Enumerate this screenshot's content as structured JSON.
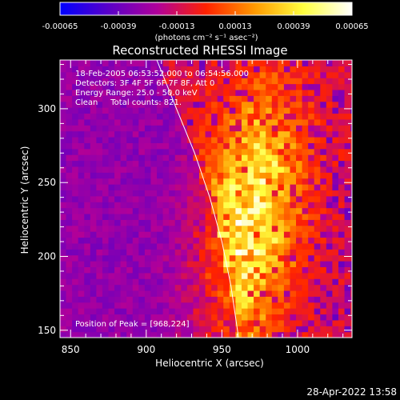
{
  "colorbar": {
    "tick_labels": [
      "-0.00065",
      "-0.00039",
      "-0.00013",
      "0.00013",
      "0.00039",
      "0.00065"
    ],
    "unit_label": "(photons cm⁻² s⁻¹ asec⁻²)",
    "colors": [
      "#0000ff",
      "#5a00c8",
      "#b0009a",
      "#ff2200",
      "#ff9a00",
      "#ffff40",
      "#ffffff"
    ]
  },
  "chart_data": {
    "type": "heatmap",
    "title": "Reconstructed RHESSI Image",
    "xlabel": "Heliocentric X (arcsec)",
    "ylabel": "Heliocentric Y (arcsec)",
    "xlim": [
      843,
      1036
    ],
    "ylim": [
      145,
      333
    ],
    "xticks": [
      850,
      900,
      950,
      1000
    ],
    "yticks": [
      150,
      200,
      250,
      300
    ],
    "value_range": [
      -0.00065,
      0.00065
    ],
    "peak": [
      968,
      224
    ],
    "limb_curve": [
      [
        907,
        333
      ],
      [
        920,
        300
      ],
      [
        932,
        270
      ],
      [
        942,
        240
      ],
      [
        950,
        210
      ],
      [
        956,
        180
      ],
      [
        961,
        145
      ]
    ],
    "annotations": [
      "18-Feb-2005 06:53:52.000 to 06:54:56.000",
      "Detectors: 3F 4F 5F 6F 7F 8F, Att 0",
      "Energy Range: 25.0 - 50.0 keV",
      "Clean     Total counts: 821.",
      "Position of Peak = [968,224]"
    ]
  },
  "footer": {
    "timestamp": "28-Apr-2022 13:58"
  }
}
